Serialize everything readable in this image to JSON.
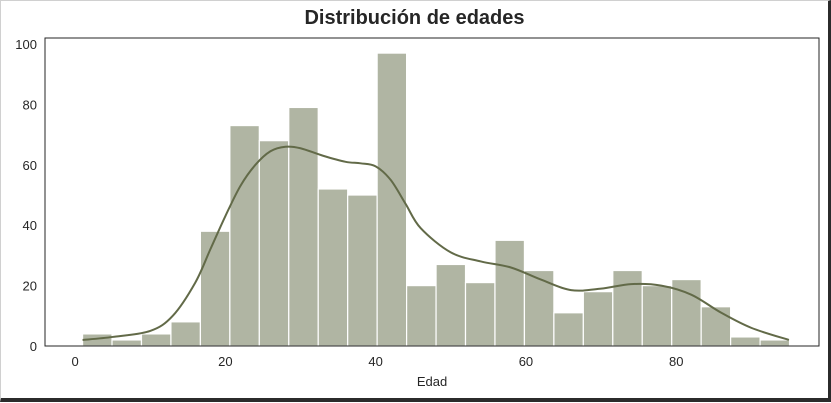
{
  "chart_data": {
    "type": "bar",
    "title": "Distribución de edades",
    "xlabel": "Edad",
    "ylabel": "",
    "xlim": [
      -4,
      99
    ],
    "ylim": [
      0,
      102
    ],
    "xticks": [
      0,
      20,
      40,
      60,
      80
    ],
    "yticks": [
      0,
      20,
      40,
      60,
      80,
      100
    ],
    "grid": false,
    "bins": {
      "edges": [
        1,
        4.92,
        8.84,
        12.76,
        16.68,
        20.6,
        24.52,
        28.44,
        32.36,
        36.28,
        40.2,
        44.12,
        48.04,
        51.96,
        55.88,
        59.8,
        63.72,
        67.64,
        71.56,
        75.48,
        79.4,
        83.32,
        87.24,
        91.16,
        95.08
      ],
      "counts": [
        4,
        2,
        4,
        8,
        38,
        73,
        68,
        79,
        52,
        50,
        97,
        20,
        27,
        21,
        35,
        25,
        11,
        18,
        25,
        20,
        22,
        13,
        3,
        2
      ]
    },
    "kde": {
      "x": [
        1,
        5,
        10,
        13,
        16,
        18,
        20,
        22,
        24,
        26,
        28,
        30,
        33,
        36,
        38,
        40,
        42,
        44,
        46,
        50,
        54,
        58,
        62,
        66,
        70,
        74,
        78,
        82,
        86,
        90,
        95
      ],
      "y": [
        2,
        3,
        5,
        10,
        21,
        32,
        43,
        53,
        60,
        64.5,
        66,
        65.5,
        63,
        61,
        60.5,
        59.5,
        55,
        47,
        39,
        31,
        28,
        26,
        22,
        18.5,
        19,
        20.5,
        20,
        17,
        11,
        6,
        2
      ]
    },
    "colors": {
      "bar_fill": "#b0b5a3",
      "bar_edge": "#ffffff",
      "kde_line": "#626a48",
      "axis": "#262626"
    }
  }
}
